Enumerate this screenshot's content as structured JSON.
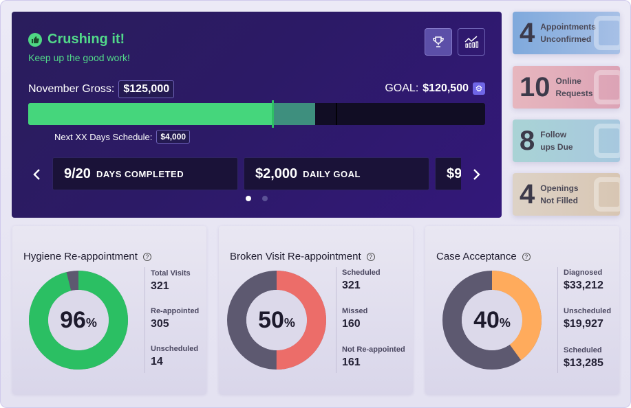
{
  "hero": {
    "title": "Crushing it!",
    "subtitle": "Keep up the good work!",
    "gross_label": "November Gross:",
    "gross_value": "$125,000",
    "goal_label": "GOAL:",
    "goal_value": "$120,500",
    "next_label": "Next XX Days Schedule:",
    "next_value": "$4,000",
    "progress_done_fraction": 0.535,
    "progress_scheduled_fraction": 0.628,
    "cards": [
      {
        "value": "9/20",
        "caption": "DAYS COMPLETED"
      },
      {
        "value": "$2,000",
        "caption": "DAILY GOAL"
      },
      {
        "value": "$9",
        "caption": ""
      }
    ],
    "dots_count": 2,
    "active_dot": 0
  },
  "mini_cards": [
    {
      "number": "4",
      "line1": "Appointments",
      "line2": "Unconfirmed"
    },
    {
      "number": "10",
      "line1": "Online",
      "line2": "Requests"
    },
    {
      "number": "8",
      "line1": "Follow",
      "line2": "ups Due"
    },
    {
      "number": "4",
      "line1": "Openings",
      "line2": "Not Filled"
    }
  ],
  "widgets": [
    {
      "title": "Hygiene Re-appointment",
      "percent_value": "96",
      "percent_sign": "%",
      "fraction": 0.96,
      "fill_color": "#2bbf63",
      "rest_color": "#5d5970",
      "stats": [
        {
          "label": "Total Visits",
          "value": "321"
        },
        {
          "label": "Re-appointed",
          "value": "305"
        },
        {
          "label": "Unscheduled",
          "value": "14"
        }
      ]
    },
    {
      "title": "Broken Visit Re-appointment",
      "percent_value": "50",
      "percent_sign": "%",
      "fraction": 0.5,
      "fill_color": "#ec6d69",
      "rest_color": "#5d5970",
      "stats": [
        {
          "label": "Scheduled",
          "value": "321"
        },
        {
          "label": "Missed",
          "value": "160"
        },
        {
          "label": "Not Re-appointed",
          "value": "161"
        }
      ]
    },
    {
      "title": "Case Acceptance",
      "percent_value": "40",
      "percent_sign": "%",
      "fraction": 0.4,
      "fill_color": "#ffab5c",
      "rest_color": "#5d5970",
      "stats": [
        {
          "label": "Diagnosed",
          "value": "$33,212"
        },
        {
          "label": "Unscheduled",
          "value": "$19,927"
        },
        {
          "label": "Scheduled",
          "value": "$13,285"
        }
      ]
    }
  ],
  "icons": {
    "thumbs_up": "thumbs-up-icon",
    "trophy": "trophy-icon",
    "chart": "chart-icon",
    "gear": "gear-icon",
    "help": "help-icon"
  }
}
